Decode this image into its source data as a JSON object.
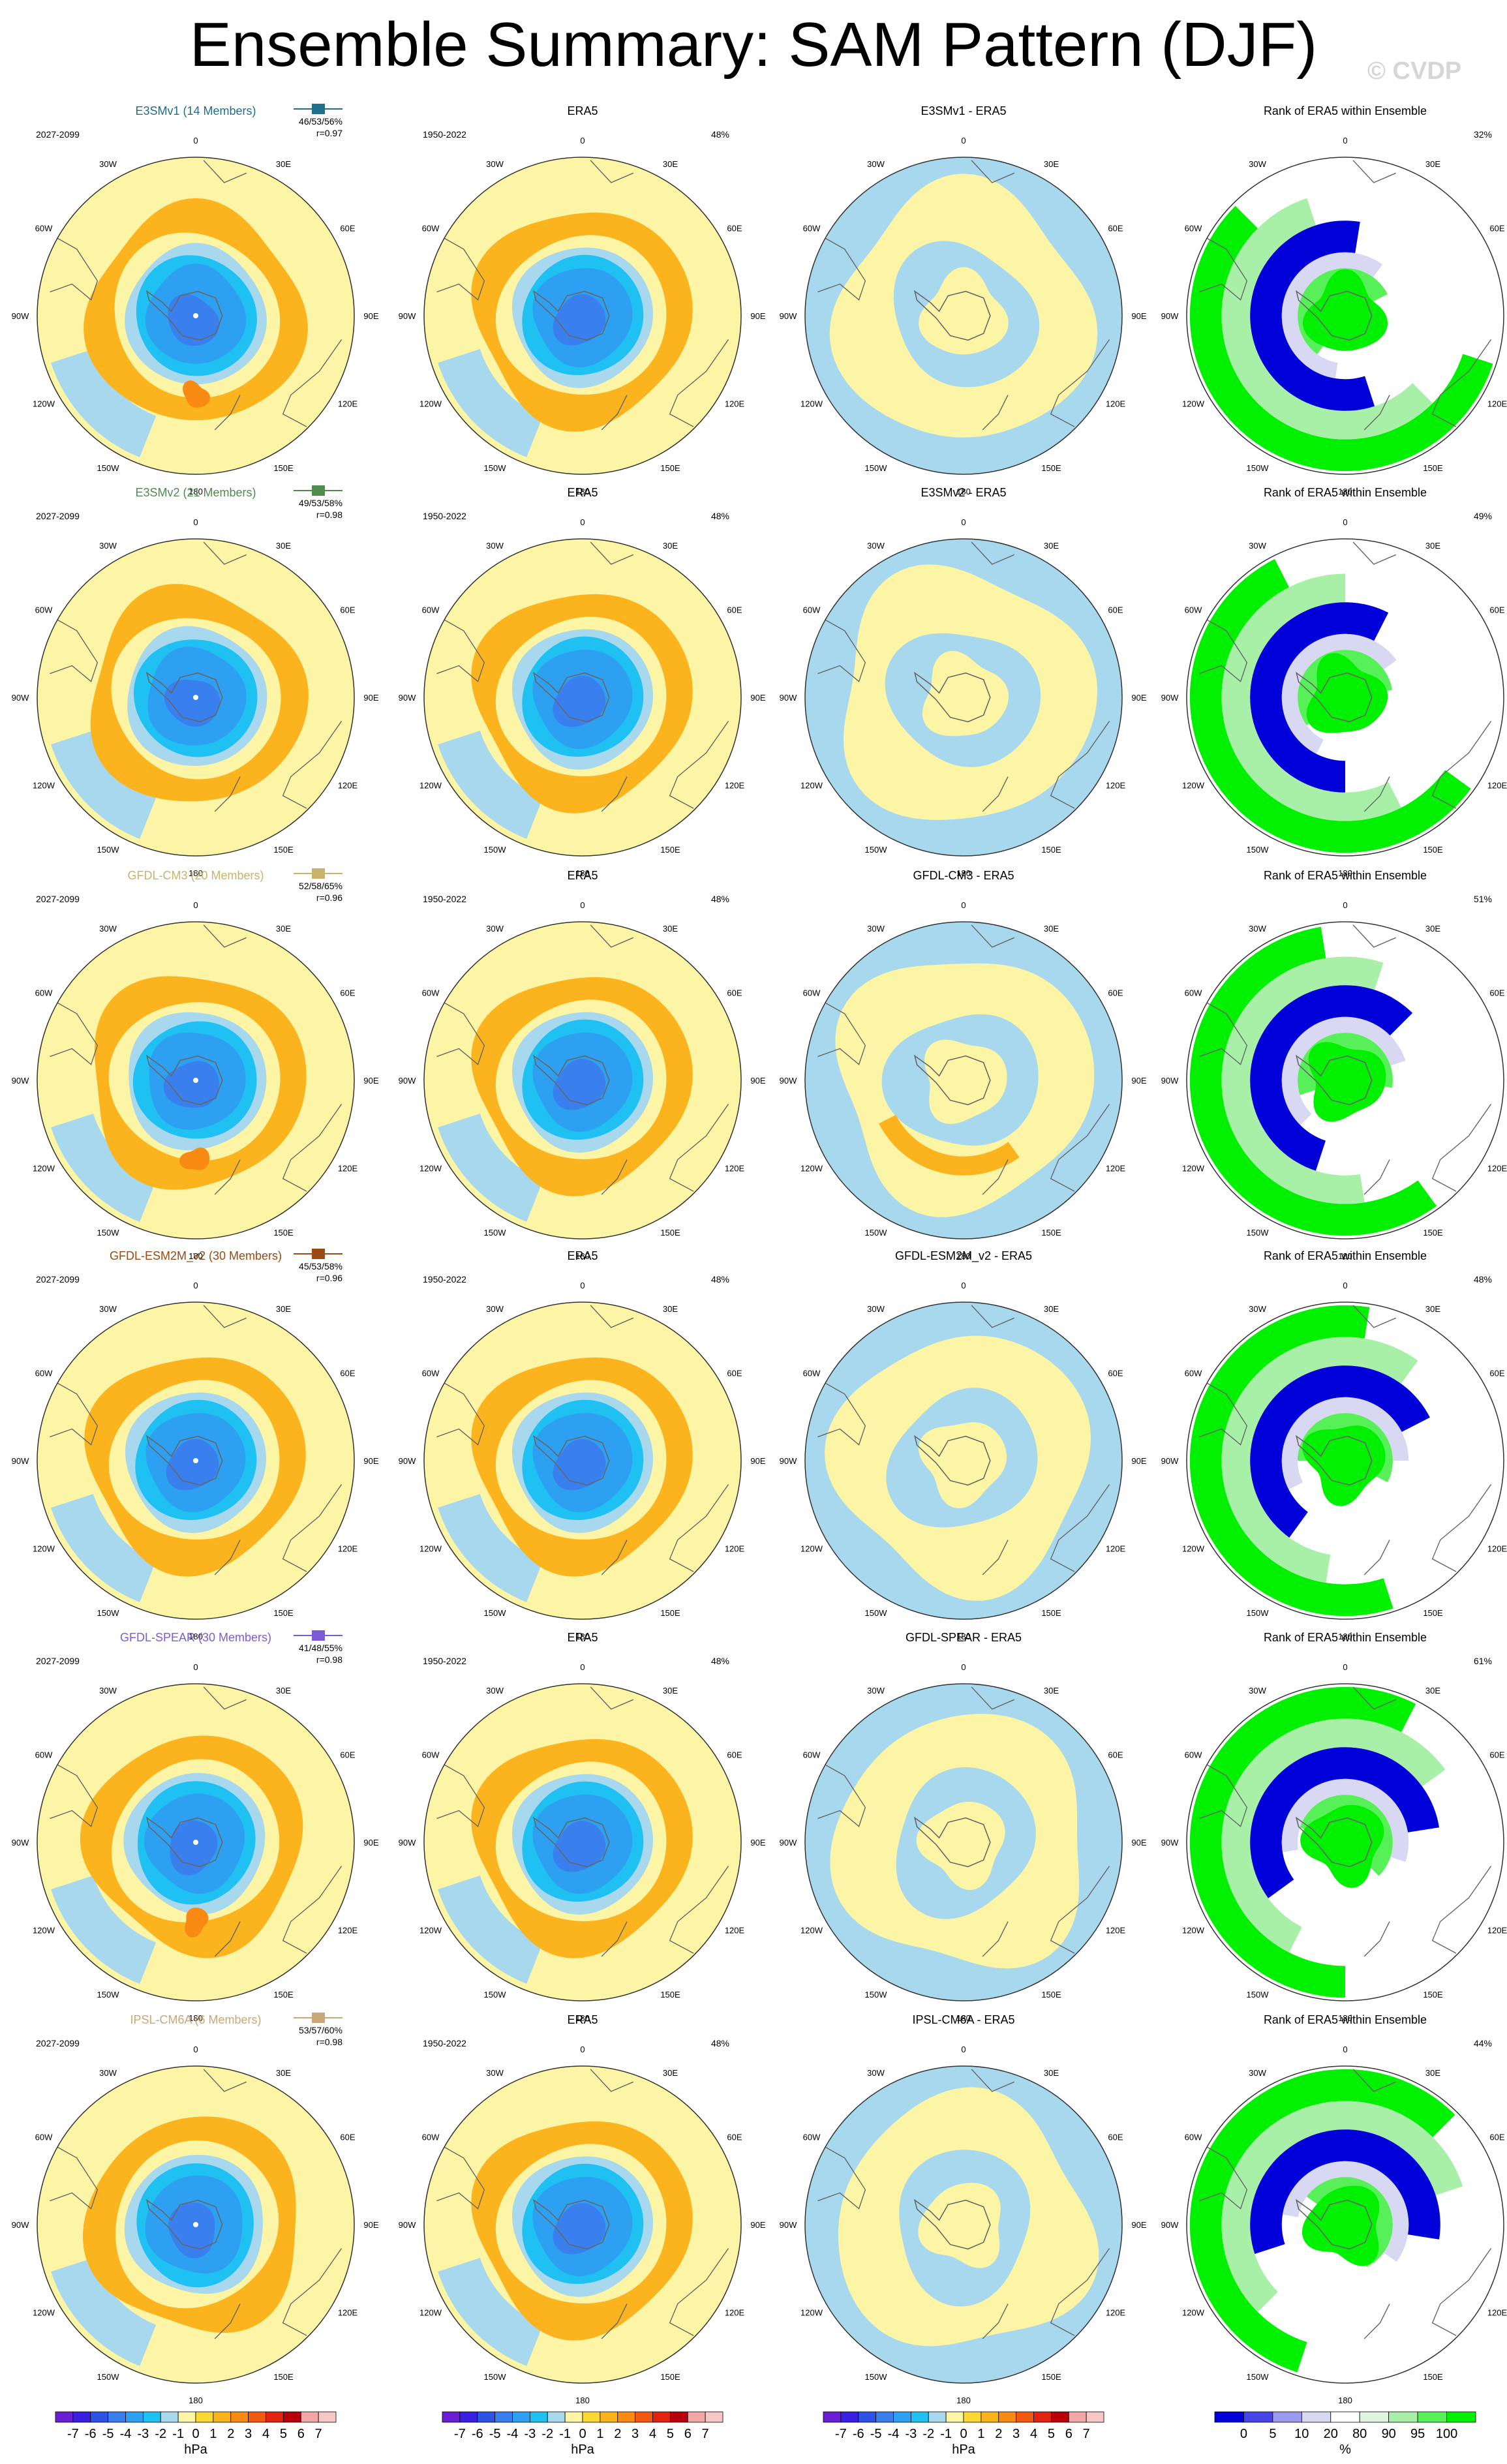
{
  "title": "Ensemble Summary: SAM Pattern (DJF)",
  "watermark": "© CVDP",
  "colors": {
    "palette": [
      "#6a1fd6",
      "#3a1fe0",
      "#2d52e6",
      "#3a7fee",
      "#2ea0f2",
      "#1fc0f2",
      "#a8d8ee",
      "#fdf5a6",
      "#fdd835",
      "#fbb41e",
      "#f98b14",
      "#f25a12",
      "#e02410",
      "#b8000a",
      "#f3a6a6"
    ],
    "rank_palette": [
      "#0000d8",
      "#4646e8",
      "#9a9af0",
      "#d8d8f2",
      "#ffffff",
      "#ffffff",
      "#dff5df",
      "#a8f0a8",
      "#58f058",
      "#00f000"
    ],
    "title_colors": [
      "#1f6e8c",
      "#4f8a4f",
      "#c9b36b",
      "#9a4a12",
      "#7b5bd6",
      "#c9a878"
    ],
    "land": "#666666"
  },
  "chart_data": {
    "type": "polar-maps",
    "variable": "SAM Pattern (DJF)",
    "rows": [
      {
        "model": "E3SMv1 (14 Members)",
        "period": "2027-2099",
        "stats": "46/53/56%",
        "r": "r=0.97",
        "diff_title": "E3SMv1 - ERA5",
        "rank_pct": "32%"
      },
      {
        "model": "E3SMv2 (21 Members)",
        "period": "2027-2099",
        "stats": "49/53/58%",
        "r": "r=0.98",
        "diff_title": "E3SMv2 - ERA5",
        "rank_pct": "49%"
      },
      {
        "model": "GFDL-CM3 (20 Members)",
        "period": "2027-2099",
        "stats": "52/58/65%",
        "r": "r=0.96",
        "diff_title": "GFDL-CM3 - ERA5",
        "rank_pct": "51%"
      },
      {
        "model": "GFDL-ESM2M_v2 (30 Members)",
        "period": "2027-2099",
        "stats": "45/53/58%",
        "r": "r=0.96",
        "diff_title": "GFDL-ESM2M_v2 - ERA5",
        "rank_pct": "48%"
      },
      {
        "model": "GFDL-SPEAR (30 Members)",
        "period": "2027-2099",
        "stats": "41/48/55%",
        "r": "r=0.98",
        "diff_title": "GFDL-SPEAR - ERA5",
        "rank_pct": "61%"
      },
      {
        "model": "IPSL-CM6A (6 Members)",
        "period": "2027-2099",
        "stats": "53/57/60%",
        "r": "r=0.98",
        "diff_title": "IPSL-CM6A - ERA5",
        "rank_pct": "44%"
      }
    ],
    "obs": {
      "title": "ERA5",
      "period": "1950-2022",
      "pct": "48%"
    },
    "rank_title": "Rank of ERA5 within Ensemble",
    "lon_labels": [
      "0",
      "30E",
      "60E",
      "90E",
      "120E",
      "150E",
      "180",
      "150W",
      "120W",
      "90W",
      "60W",
      "30W"
    ],
    "colorbar": {
      "ticks": [
        "-7",
        "-6",
        "-5",
        "-4",
        "-3",
        "-2",
        "-1",
        "0",
        "1",
        "2",
        "3",
        "4",
        "5",
        "6",
        "7"
      ],
      "units": "hPa"
    },
    "rank_colorbar": {
      "ticks": [
        "0",
        "5",
        "10",
        "20",
        "80",
        "90",
        "95",
        "100"
      ],
      "units": "%"
    }
  }
}
